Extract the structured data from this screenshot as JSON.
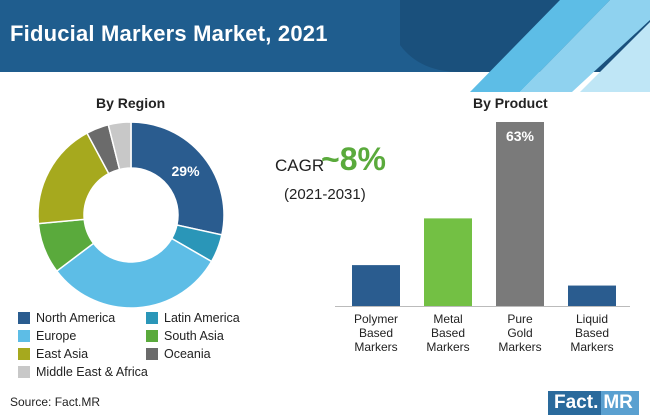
{
  "title": "Fiducial Markers Market, 2021",
  "region_label": "By Region",
  "product_label": "By Product",
  "cagr": {
    "label": "CAGR",
    "value": "~8%",
    "period": "(2021-2031)"
  },
  "source": "Source: Fact.MR",
  "logo": {
    "part1": "Fact.",
    "part2": "MR"
  },
  "colors": {
    "header": "#1f5d8e",
    "north_america": "#2a5c8f",
    "latin_america": "#2a96b8",
    "europe": "#5dbde6",
    "south_asia": "#5aaa3c",
    "east_asia": "#a6a91e",
    "oceania": "#6b6b6b",
    "middle_east_africa": "#c8c8c8",
    "bar_polymer": "#2a5c8f",
    "bar_metal": "#73c044",
    "bar_gold": "#7a7a7a",
    "bar_liquid": "#2a5c8f"
  },
  "chart_data": [
    {
      "type": "pie",
      "title": "By Region",
      "labels": [
        "North America",
        "Latin America",
        "Europe",
        "South Asia",
        "East Asia",
        "Oceania",
        "Middle East & Africa"
      ],
      "values": [
        29,
        5,
        32,
        9,
        19,
        4,
        4
      ],
      "data_labels": [
        "29%",
        "",
        "",
        "",
        "",
        "",
        ""
      ],
      "colors": [
        "#2a5c8f",
        "#2a96b8",
        "#5dbde6",
        "#5aaa3c",
        "#a6a91e",
        "#6b6b6b",
        "#c8c8c8"
      ],
      "legend_placement": "bottom"
    },
    {
      "type": "bar",
      "title": "By Product",
      "categories": [
        "Polymer Based Markers",
        "Metal Based Markers",
        "Pure Gold Markers",
        "Liquid Based Markers"
      ],
      "category_lines": [
        [
          "Polymer",
          "Based",
          "Markers"
        ],
        [
          "Metal",
          "Based",
          "Markers"
        ],
        [
          "Pure",
          "Gold",
          "Markers"
        ],
        [
          "Liquid",
          "Based",
          "Markers"
        ]
      ],
      "values": [
        14,
        30,
        63,
        7
      ],
      "data_labels": [
        "",
        "",
        "63%",
        ""
      ],
      "colors": [
        "#2a5c8f",
        "#73c044",
        "#7a7a7a",
        "#2a5c8f"
      ],
      "ylim": [
        0,
        63
      ],
      "grid": false
    }
  ]
}
